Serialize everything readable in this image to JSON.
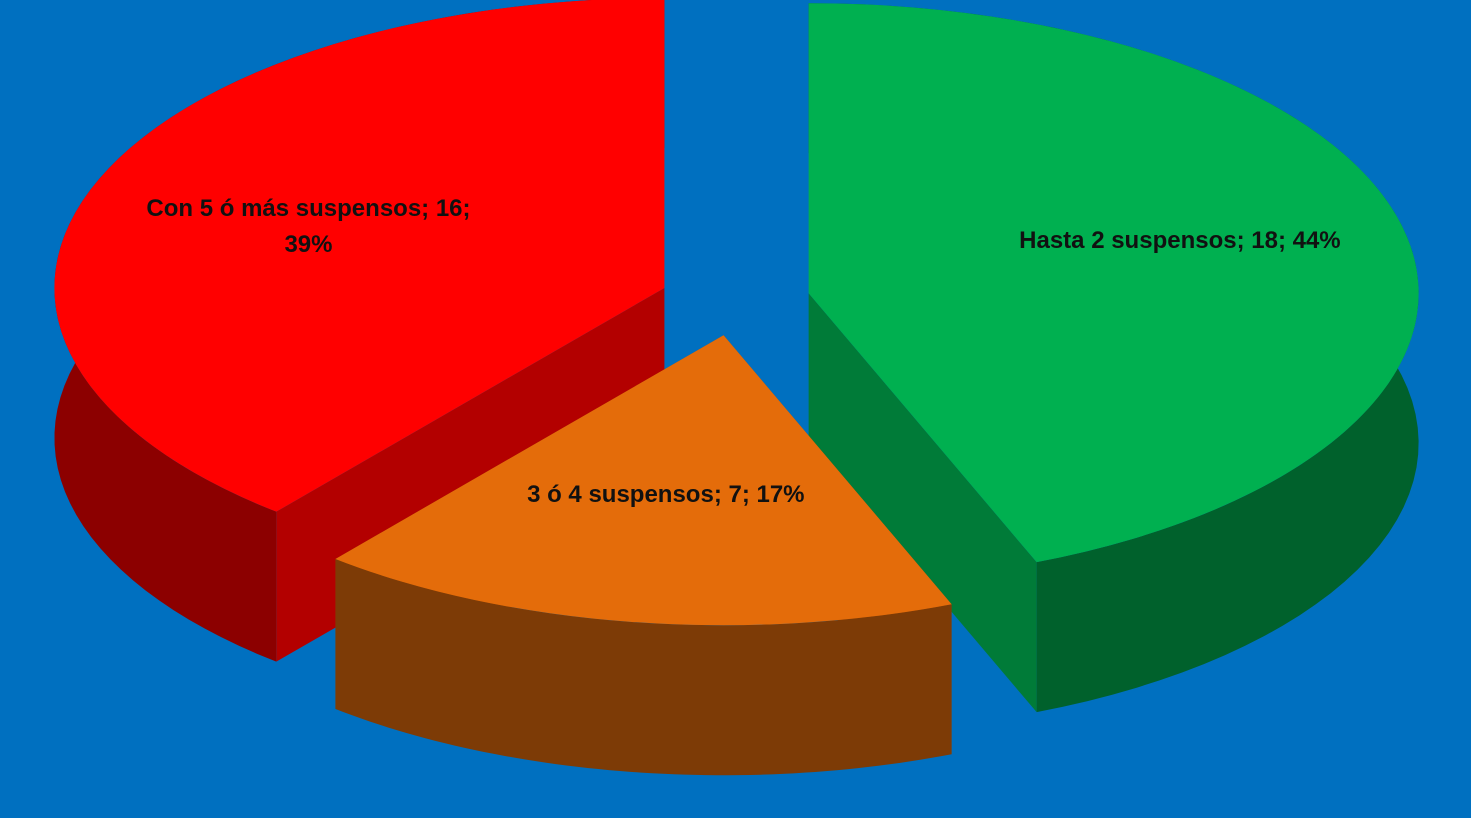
{
  "chart_data": {
    "type": "pie3d",
    "values": [
      18,
      7,
      16
    ],
    "value_labels": [
      "Hasta 2 suspensos; 18; 44%",
      "3 ó 4 suspensos; 7; 17%",
      "Con 5 ó más suspensos; 16; 39%"
    ],
    "colors": [
      "#00b050",
      "#e46c0a",
      "#ff0000"
    ],
    "background": "#0070c0"
  }
}
